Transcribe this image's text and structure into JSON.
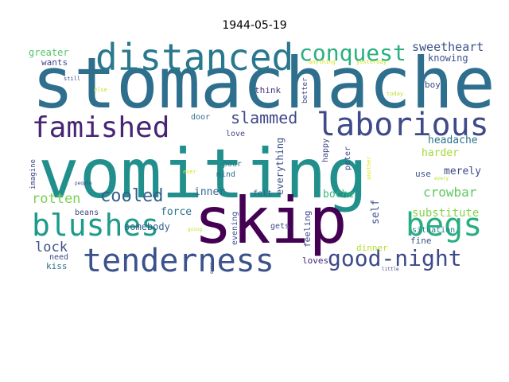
{
  "chart_data": {
    "type": "wordcloud",
    "title": "1944-05-19",
    "words": [
      {
        "text": "stomachache",
        "color": "#2e6f8e"
      },
      {
        "text": "vomiting",
        "color": "#21908d"
      },
      {
        "text": "skip",
        "color": "#440154"
      },
      {
        "text": "distanced",
        "color": "#2a788e"
      },
      {
        "text": "tenderness",
        "color": "#3b528b"
      },
      {
        "text": "laborious",
        "color": "#3e4a89"
      },
      {
        "text": "famished",
        "color": "#482475"
      },
      {
        "text": "blushes",
        "color": "#1f9a8a"
      },
      {
        "text": "begs",
        "color": "#27ad81"
      },
      {
        "text": "good-night",
        "color": "#3e4a89"
      },
      {
        "text": "conquest",
        "color": "#2ab07f"
      },
      {
        "text": "cooled",
        "color": "#355f8d"
      },
      {
        "text": "slammed",
        "color": "#3f4788"
      },
      {
        "text": "sweetheart",
        "color": "#3b528b"
      },
      {
        "text": "crowbar",
        "color": "#5ec962"
      },
      {
        "text": "rotten",
        "color": "#7ad151"
      },
      {
        "text": "lock",
        "color": "#3b528b"
      },
      {
        "text": "substitute",
        "color": "#84d44b"
      },
      {
        "text": "headache",
        "color": "#2c728e"
      },
      {
        "text": "merely",
        "color": "#3e4a89"
      },
      {
        "text": "harder",
        "color": "#a0da39"
      },
      {
        "text": "inner",
        "color": "#31688e"
      },
      {
        "text": "force",
        "color": "#2c728e"
      },
      {
        "text": "boche",
        "color": "#35b779"
      },
      {
        "text": "greater",
        "color": "#52c569"
      },
      {
        "text": "knowing",
        "color": "#3b528b"
      },
      {
        "text": "wants",
        "color": "#3e4a89"
      },
      {
        "text": "self",
        "color": "#3b528b"
      },
      {
        "text": "everything",
        "color": "#3b528b"
      },
      {
        "text": "feeling",
        "color": "#3e4a89"
      },
      {
        "text": "somebody",
        "color": "#355f8d"
      },
      {
        "text": "dinner",
        "color": "#b5de2b"
      },
      {
        "text": "fine",
        "color": "#3b528b"
      },
      {
        "text": "loves",
        "color": "#482475"
      },
      {
        "text": "kiss",
        "color": "#2e6f8e"
      },
      {
        "text": "need",
        "color": "#3e4a89"
      },
      {
        "text": "situation",
        "color": "#26828e"
      },
      {
        "text": "use",
        "color": "#3b528b"
      },
      {
        "text": "beans",
        "color": "#414487"
      },
      {
        "text": "boy",
        "color": "#3e4a89"
      },
      {
        "text": "think",
        "color": "#46327e"
      },
      {
        "text": "door",
        "color": "#2c728e"
      },
      {
        "text": "love",
        "color": "#3f4788"
      },
      {
        "text": "mind",
        "color": "#2e6f8e"
      },
      {
        "text": "poor",
        "color": "#2c728e"
      },
      {
        "text": "felt",
        "color": "#355f8d"
      },
      {
        "text": "gets",
        "color": "#3e4a89"
      },
      {
        "text": "evening",
        "color": "#3b528b"
      },
      {
        "text": "happy",
        "color": "#3f4788"
      },
      {
        "text": "peter",
        "color": "#3e4a89"
      },
      {
        "text": "better",
        "color": "#3e4a89"
      },
      {
        "text": "imagine",
        "color": "#404688"
      },
      {
        "text": "anything",
        "color": "#d8e219"
      },
      {
        "text": "yesterday",
        "color": "#cde11d"
      },
      {
        "text": "still",
        "color": "#3e4a89"
      },
      {
        "text": "else",
        "color": "#c2df23"
      },
      {
        "text": "today",
        "color": "#bddf26"
      },
      {
        "text": "another",
        "color": "#e2e418"
      },
      {
        "text": "every",
        "color": "#b5de2b"
      },
      {
        "text": "ever",
        "color": "#d8e219"
      },
      {
        "text": "people",
        "color": "#3e4a89"
      },
      {
        "text": "going",
        "color": "#c2df23"
      },
      {
        "text": "even",
        "color": "#3e4a89"
      },
      {
        "text": "little",
        "color": "#3e4a89"
      }
    ]
  }
}
